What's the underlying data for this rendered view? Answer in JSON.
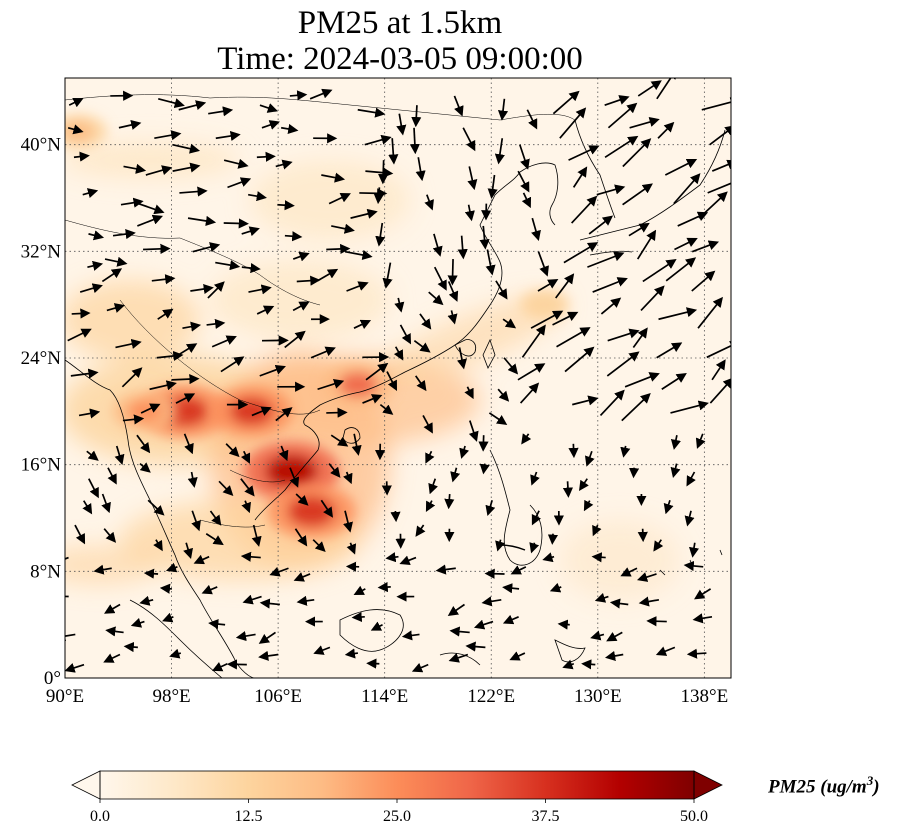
{
  "figure": {
    "title_line1": "PM25 at 1.5km",
    "title_line2": "Time: 2024-03-05 09:00:00"
  },
  "map": {
    "region": "East and Southeast Asia",
    "lon_range": [
      90,
      140
    ],
    "lat_range": [
      0,
      45
    ],
    "x_ticks": [
      "90°E",
      "98°E",
      "106°E",
      "114°E",
      "122°E",
      "130°E",
      "138°E"
    ],
    "x_tick_values": [
      90,
      98,
      106,
      114,
      122,
      130,
      138
    ],
    "y_ticks": [
      "0°",
      "8°N",
      "16°N",
      "24°N",
      "32°N",
      "40°N"
    ],
    "y_tick_values": [
      0,
      8,
      16,
      24,
      32,
      40
    ],
    "gridlines": "dotted",
    "overlay": "wind vectors (quiver arrows)",
    "hotspots": [
      {
        "lon": 99,
        "lat": 20,
        "level": 40
      },
      {
        "lon": 104,
        "lat": 20,
        "level": 35
      },
      {
        "lon": 107,
        "lat": 15.5,
        "level": 45
      },
      {
        "lon": 108.5,
        "lat": 12.5,
        "level": 40
      },
      {
        "lon": 112,
        "lat": 22,
        "level": 30
      },
      {
        "lon": 96,
        "lat": 20,
        "level": 25
      },
      {
        "lon": 126,
        "lat": 28,
        "level": 15
      },
      {
        "lon": 91,
        "lat": 41,
        "level": 20
      }
    ]
  },
  "colorbar": {
    "label": "PM25 (ug/m³)",
    "label_base": "PM25 (ug/m",
    "label_sup": "3",
    "label_close": ")",
    "ticks": [
      "0.0",
      "12.5",
      "25.0",
      "37.5",
      "50.0"
    ],
    "tick_values": [
      0,
      12.5,
      25,
      37.5,
      50
    ],
    "range": [
      0,
      50
    ],
    "colormap": "OrRd",
    "extend": "both",
    "colors": [
      "#fff7ec",
      "#fee8c8",
      "#fdd49e",
      "#fdbb84",
      "#fc8d59",
      "#ef6548",
      "#d7301f",
      "#b30000",
      "#7f0000"
    ]
  }
}
